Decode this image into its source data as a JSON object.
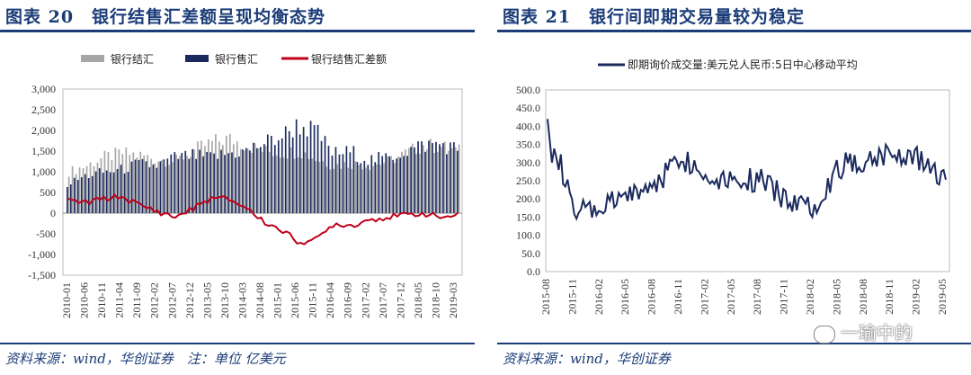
{
  "left": {
    "title": "图表 20　银行结售汇差额呈现均衡态势",
    "source": "资料来源：wind，华创证券　注：单位 亿美元",
    "legend": [
      "银行结汇",
      "银行售汇",
      "银行结售汇差额"
    ],
    "y_ticks": [
      "3,000",
      "2,500",
      "2,000",
      "1,500",
      "1,000",
      "500",
      "0",
      "-500",
      "-1,000",
      "-1,500"
    ],
    "x_ticks": [
      "2010-01",
      "2010-06",
      "2010-11",
      "2011-04",
      "2011-09",
      "2012-02",
      "2012-07",
      "2012-12",
      "2013-05",
      "2013-10",
      "2014-03",
      "2014-08",
      "2015-01",
      "2015-06",
      "2015-11",
      "2016-04",
      "2016-09",
      "2017-02",
      "2017-07",
      "2017-12",
      "2018-05",
      "2018-10",
      "2019-03"
    ]
  },
  "right": {
    "title": "图表 21　银行间即期交易量较为稳定",
    "source": "资料来源：wind，华创证券",
    "legend": [
      "即期询价成交量:美元兑人民币:5日中心移动平均"
    ],
    "y_ticks": [
      "500.0",
      "450.0",
      "400.0",
      "350.0",
      "300.0",
      "250.0",
      "200.0",
      "150.0",
      "100.0",
      "50.0",
      "0.0"
    ],
    "x_ticks": [
      "2015-08",
      "2015-11",
      "2016-02",
      "2016-05",
      "2016-08",
      "2016-11",
      "2017-02",
      "2017-05",
      "2017-08",
      "2017-11",
      "2018-02",
      "2018-05",
      "2018-08",
      "2018-11",
      "2019-02",
      "2019-05"
    ]
  },
  "watermark": "一瑜中的",
  "chart_data": [
    {
      "type": "bar",
      "title": "银行结售汇差额呈现均衡态势",
      "ylim": [
        -1500,
        3000
      ],
      "x": [
        "2010-01",
        "2010-06",
        "2010-11",
        "2011-04",
        "2011-09",
        "2012-02",
        "2012-07",
        "2012-12",
        "2013-05",
        "2013-10",
        "2014-03",
        "2014-08",
        "2015-01",
        "2015-06",
        "2015-11",
        "2016-04",
        "2016-09",
        "2017-02",
        "2017-07",
        "2017-12",
        "2018-05",
        "2018-10",
        "2019-03"
      ],
      "series": [
        {
          "name": "银行结汇",
          "color": "#a6a6a6",
          "values": [
            1000,
            1150,
            1350,
            1450,
            1400,
            1300,
            1250,
            1500,
            1700,
            1800,
            1650,
            1500,
            1450,
            1500,
            1300,
            1150,
            1200,
            1150,
            1250,
            1450,
            1650,
            1600,
            1500
          ]
        },
        {
          "name": "银行售汇",
          "color": "#1b2a5e",
          "values": [
            700,
            900,
            1000,
            1050,
            1200,
            1150,
            1350,
            1400,
            1350,
            1450,
            1500,
            1700,
            1850,
            2150,
            2000,
            1450,
            1500,
            1300,
            1350,
            1500,
            1650,
            1700,
            1550
          ]
        },
        {
          "name": "银行结售汇差额",
          "color": "#c0001a",
          "values": [
            300,
            250,
            350,
            400,
            200,
            50,
            -100,
            100,
            350,
            350,
            150,
            -200,
            -400,
            -700,
            -650,
            -250,
            -300,
            -150,
            -100,
            -50,
            0,
            -100,
            -50
          ]
        }
      ]
    },
    {
      "type": "line",
      "title": "银行间即期交易量较为稳定",
      "ylim": [
        0,
        500
      ],
      "x": [
        "2015-08",
        "2015-11",
        "2016-02",
        "2016-05",
        "2016-08",
        "2016-11",
        "2017-02",
        "2017-05",
        "2017-08",
        "2017-11",
        "2018-02",
        "2018-05",
        "2018-08",
        "2018-11",
        "2019-02",
        "2019-05"
      ],
      "series": [
        {
          "name": "即期询价成交量:美元兑人民币:5日中心移动平均",
          "color": "#1b2a5e",
          "values": [
            420,
            160,
            170,
            210,
            235,
            320,
            260,
            260,
            250,
            200,
            180,
            290,
            310,
            330,
            310,
            260
          ]
        }
      ]
    }
  ]
}
